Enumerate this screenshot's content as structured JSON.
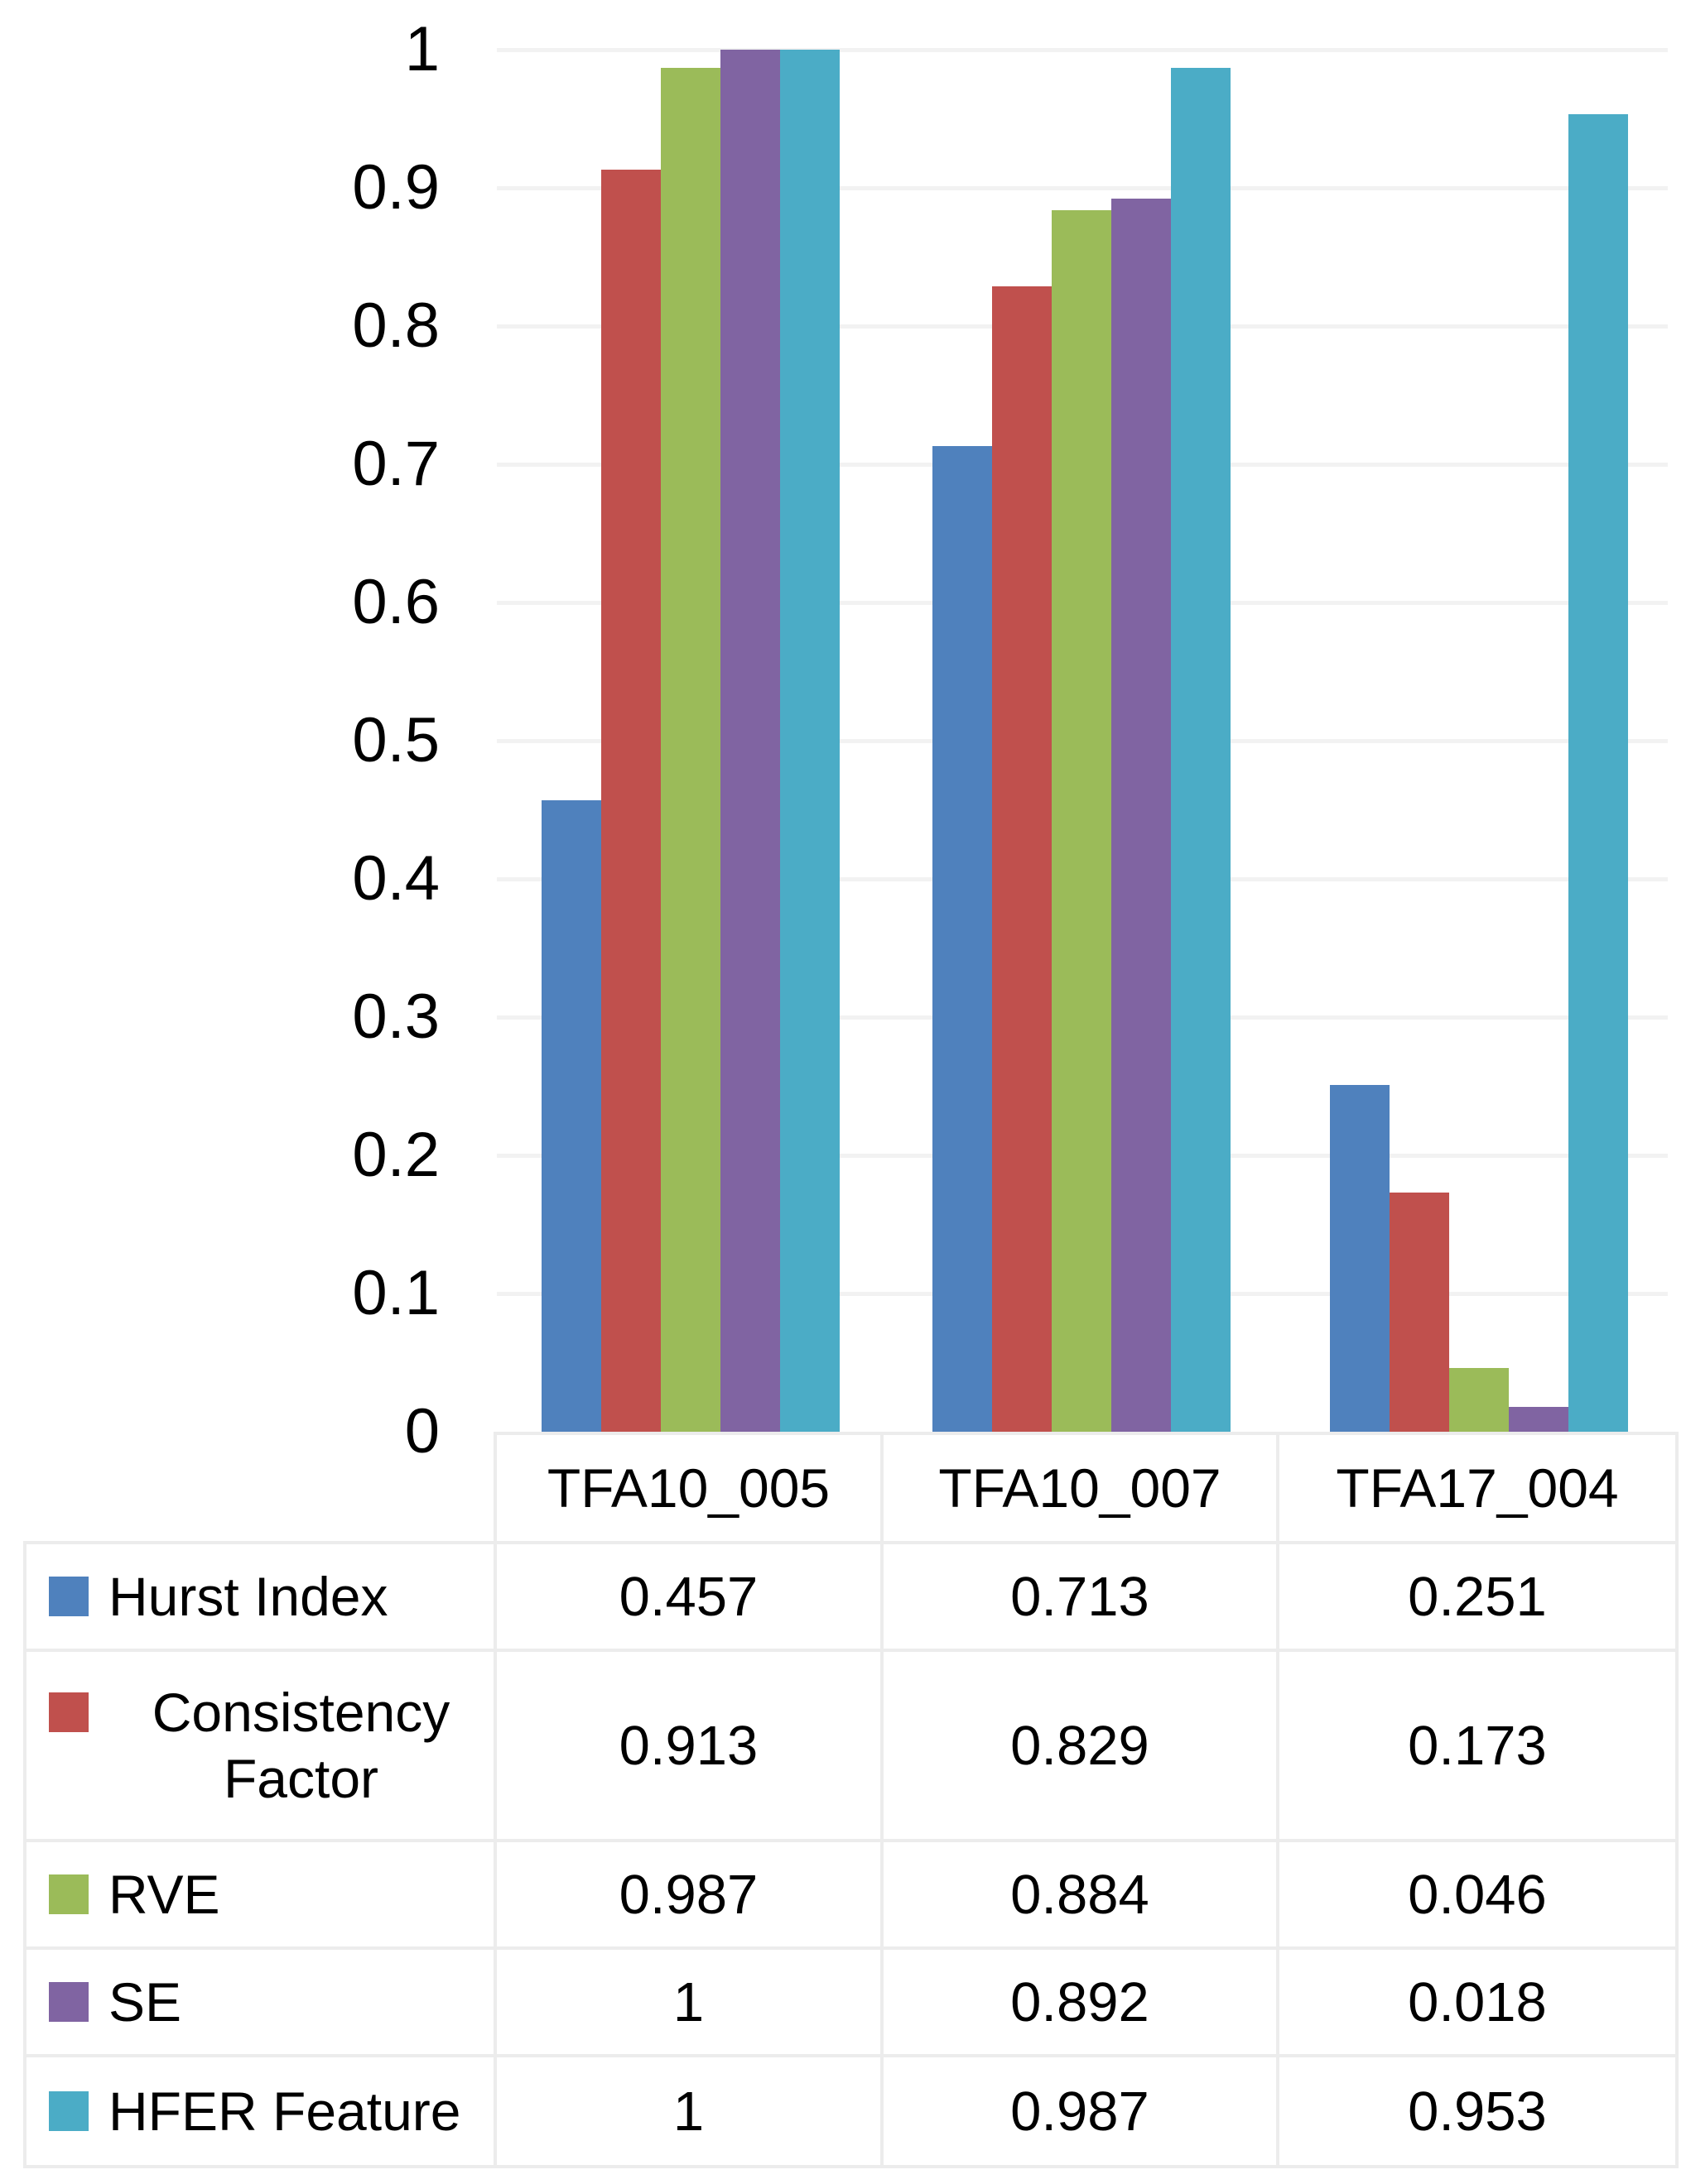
{
  "chart_data": {
    "type": "bar",
    "title": "",
    "xlabel": "",
    "ylabel": "",
    "categories": [
      "TFA10_005",
      "TFA10_007",
      "TFA17_004"
    ],
    "series": [
      {
        "name": "Hurst Index",
        "color": "#4F81BD",
        "values": [
          0.457,
          0.713,
          0.251
        ],
        "labels": [
          "0.457",
          "0.713",
          "0.251"
        ]
      },
      {
        "name": "Consistency Factor",
        "color": "#C0504D",
        "values": [
          0.913,
          0.829,
          0.173
        ],
        "labels": [
          "0.913",
          "0.829",
          "0.173"
        ]
      },
      {
        "name": "RVE",
        "color": "#9BBB59",
        "values": [
          0.987,
          0.884,
          0.046
        ],
        "labels": [
          "0.987",
          "0.884",
          "0.046"
        ]
      },
      {
        "name": "SE",
        "color": "#8064A2",
        "values": [
          1,
          0.892,
          0.018
        ],
        "labels": [
          "1",
          "0.892",
          "0.018"
        ]
      },
      {
        "name": "HFER Feature",
        "color": "#4BACC6",
        "values": [
          1,
          0.987,
          0.953
        ],
        "labels": [
          "1",
          "0.987",
          "0.953"
        ]
      }
    ],
    "ylim": [
      0,
      1
    ],
    "ytick_step": 0.1,
    "yticks": [
      "0",
      "0.1",
      "0.2",
      "0.3",
      "0.4",
      "0.5",
      "0.6",
      "0.7",
      "0.8",
      "0.9",
      "1"
    ],
    "grid": true,
    "legend_position": "data-table-left-column"
  },
  "colors": {
    "gridline": "#f2f2f2",
    "table_border": "#ececec",
    "text": "#000000",
    "background": "#ffffff"
  }
}
